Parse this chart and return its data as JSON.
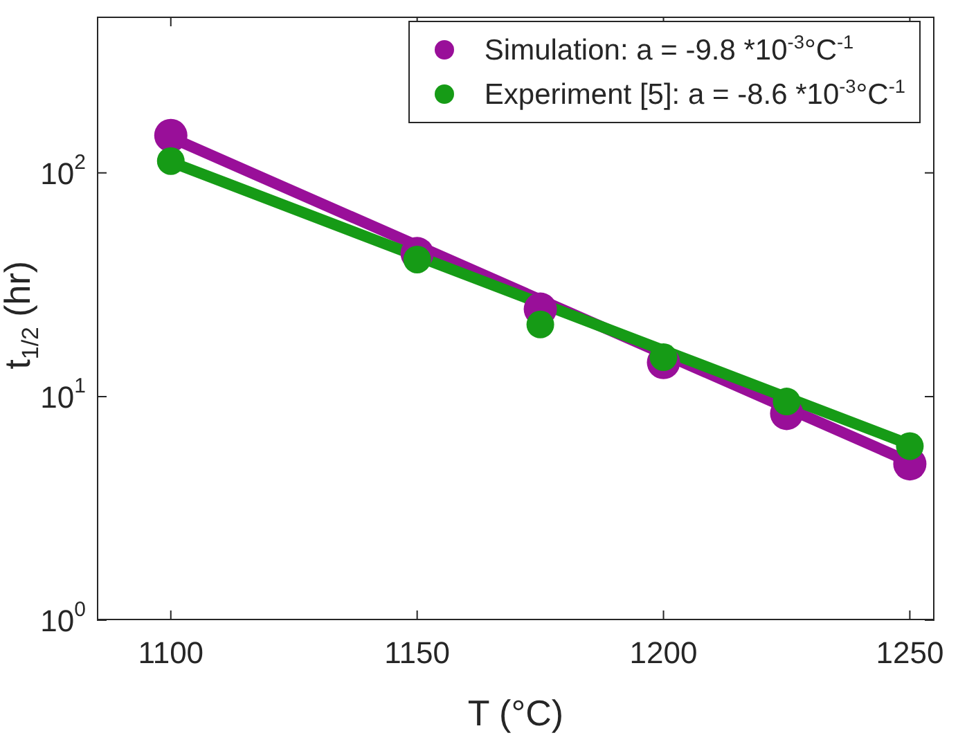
{
  "chart_data": {
    "type": "scatter",
    "xlabel": "T (°C)",
    "ylabel": "t$_{1/2}$ (hr)",
    "log": "y",
    "xlim": [
      1085,
      1255
    ],
    "xticks": [
      1100,
      1150,
      1200,
      1250
    ],
    "ylim": [
      1,
      500
    ],
    "yticks": [
      {
        "value": 1,
        "label": "10$^{0}$"
      },
      {
        "value": 10,
        "label": "10$^{1}$"
      },
      {
        "value": 100,
        "label": "10$^{2}$"
      }
    ],
    "grid": false,
    "legend": "top right",
    "marker": "circle",
    "series": [
      {
        "type": "line",
        "color": "#990f99",
        "x": [
          1100,
          1250
        ],
        "values": [
          144,
          5.1
        ],
        "marker": "none"
      },
      {
        "type": "line",
        "color": "#169b16",
        "x": [
          1100,
          1250
        ],
        "values": [
          112,
          6.1
        ],
        "marker": "none"
      },
      {
        "name": "Simulation: a = -9.8 *10$^{-3}$°C$^{-1}$",
        "color": "#990f99",
        "x": [
          1100,
          1150,
          1175,
          1200,
          1225,
          1250
        ],
        "values": [
          147,
          43.6,
          24.6,
          14.2,
          8.4,
          5.0
        ]
      },
      {
        "name": "Experiment [5]: a = -8.6 *10$^{-3}$°C$^{-1}$",
        "color": "#169b16",
        "x": [
          1100,
          1150,
          1175,
          1200,
          1225,
          1250
        ],
        "values": [
          113,
          41,
          21,
          15,
          9.5,
          6.0
        ]
      }
    ]
  }
}
